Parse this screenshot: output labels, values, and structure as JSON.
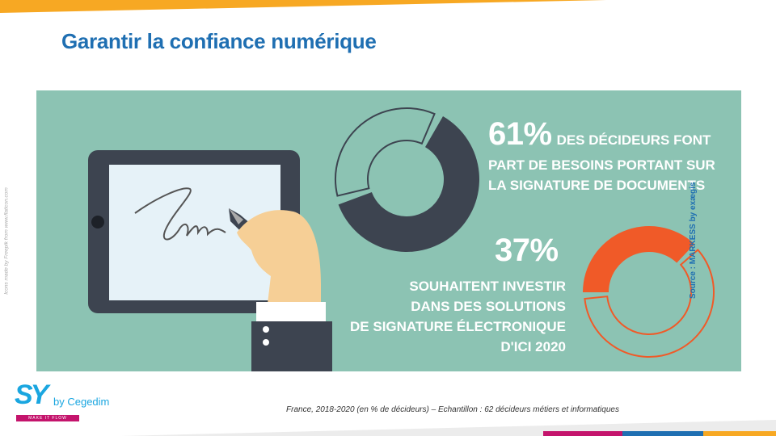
{
  "title": "Garantir la confiance numérique",
  "credit": "Icons made by Freepik from www.flaticon.com",
  "source": "Source : MARKESS by exægis",
  "stat1": {
    "percent": "61%",
    "lead": "DES DÉCIDEURS FONT",
    "line2": "PART DE BESOINS PORTANT SUR",
    "line3": "LA SIGNATURE DE DOCUMENTS",
    "value": 61
  },
  "stat2": {
    "percent": "37%",
    "line1": "SOUHAITENT INVESTIR",
    "line2": "DANS DES SOLUTIONS",
    "line3": "DE SIGNATURE ÉLECTRONIQUE",
    "line4": "D'ICI 2020",
    "value": 37
  },
  "footer_note": "France, 2018-2020 (en % de décideurs) – Echantillon : 62 décideurs métiers et informatiques",
  "logo": {
    "brand": "SY",
    "by": "by Cegedim",
    "tagline": "MAKE IT FLOW"
  },
  "colors": {
    "panel": "#8cc3b3",
    "dark_donut": "#3d4450",
    "orange_donut": "#f05a28",
    "title": "#1f6fb2",
    "accent_yellow": "#f7a823",
    "magenta": "#c4146c"
  }
}
